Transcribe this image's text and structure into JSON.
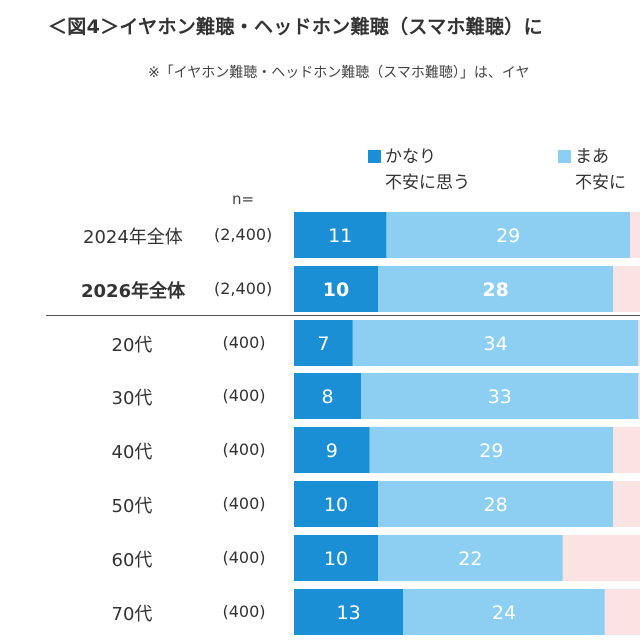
{
  "header": {
    "title": "＜図4＞イヤホン難聴・ヘッドホン難聴（スマホ難聴）に",
    "note": "※「イヤホン難聴・ヘッドホン難聴（スマホ難聴）」は、イヤ"
  },
  "colors": {
    "strong": "#1a8fd6",
    "somewhat": "#8ccff2",
    "next": "#fbe3e3"
  },
  "chart_data": {
    "type": "bar",
    "orientation": "horizontal",
    "stacked": true,
    "n_header": "n=",
    "legend": [
      {
        "line1": "かなり",
        "line2": "不安に思う"
      },
      {
        "line1": "まあ",
        "line2": "不安に"
      }
    ],
    "categories": [
      "2024年全体",
      "2026年全体",
      "20代",
      "30代",
      "40代",
      "50代",
      "60代",
      "70代"
    ],
    "n": [
      "(2,400)",
      "(2,400)",
      "(400)",
      "(400)",
      "(400)",
      "(400)",
      "(400)",
      "(400)"
    ],
    "series": [
      {
        "name": "かなり不安に思う",
        "values": [
          11,
          10,
          7,
          8,
          9,
          10,
          10,
          13
        ]
      },
      {
        "name": "まあ不安に",
        "values": [
          29,
          28,
          34,
          33,
          29,
          28,
          22,
          24
        ]
      }
    ],
    "bold_rows": [
      1
    ]
  }
}
